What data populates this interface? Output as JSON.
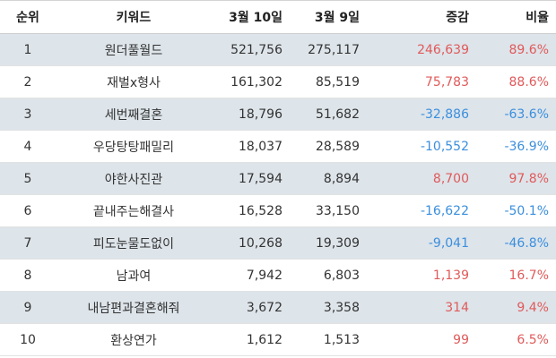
{
  "colors": {
    "header_bg": "#ffffff",
    "stripe_bg": "#dde4ea",
    "positive": "#e05a5a",
    "negative": "#3b8fdd"
  },
  "table": {
    "headers": {
      "rank": "순위",
      "keyword": "키워드",
      "date1": "3월 10일",
      "date2": "3월 9일",
      "diff": "증감",
      "rate": "비율"
    },
    "rows": [
      {
        "rank": "1",
        "keyword": "원더풀월드",
        "date1": "521,756",
        "date2": "275,117",
        "diff": "246,639",
        "rate": "89.6%",
        "trend": "pos"
      },
      {
        "rank": "2",
        "keyword": "재벌x형사",
        "date1": "161,302",
        "date2": "85,519",
        "diff": "75,783",
        "rate": "88.6%",
        "trend": "pos"
      },
      {
        "rank": "3",
        "keyword": "세번째결혼",
        "date1": "18,796",
        "date2": "51,682",
        "diff": "-32,886",
        "rate": "-63.6%",
        "trend": "neg"
      },
      {
        "rank": "4",
        "keyword": "우당탕탕패밀리",
        "date1": "18,037",
        "date2": "28,589",
        "diff": "-10,552",
        "rate": "-36.9%",
        "trend": "neg"
      },
      {
        "rank": "5",
        "keyword": "야한사진관",
        "date1": "17,594",
        "date2": "8,894",
        "diff": "8,700",
        "rate": "97.8%",
        "trend": "pos"
      },
      {
        "rank": "6",
        "keyword": "끝내주는해결사",
        "date1": "16,528",
        "date2": "33,150",
        "diff": "-16,622",
        "rate": "-50.1%",
        "trend": "neg"
      },
      {
        "rank": "7",
        "keyword": "피도눈물도없이",
        "date1": "10,268",
        "date2": "19,309",
        "diff": "-9,041",
        "rate": "-46.8%",
        "trend": "neg"
      },
      {
        "rank": "8",
        "keyword": "남과여",
        "date1": "7,942",
        "date2": "6,803",
        "diff": "1,139",
        "rate": "16.7%",
        "trend": "pos"
      },
      {
        "rank": "9",
        "keyword": "내남편과결혼해줘",
        "date1": "3,672",
        "date2": "3,358",
        "diff": "314",
        "rate": "9.4%",
        "trend": "pos"
      },
      {
        "rank": "10",
        "keyword": "환상연가",
        "date1": "1,612",
        "date2": "1,513",
        "diff": "99",
        "rate": "6.5%",
        "trend": "pos"
      }
    ]
  }
}
